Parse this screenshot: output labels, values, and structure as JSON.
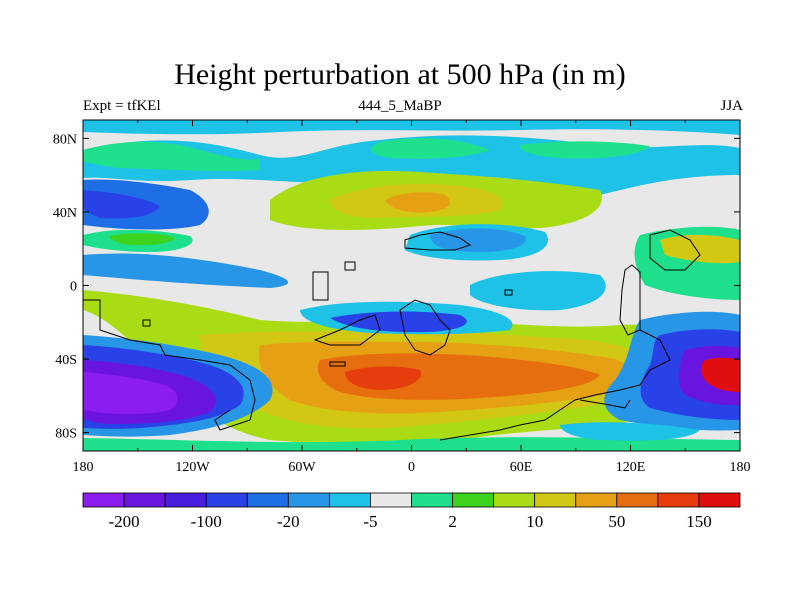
{
  "title": "Height perturbation at 500 hPa (in m)",
  "subtitle_left": "Expt = tfKEl",
  "subtitle_center": "444_5_MaBP",
  "subtitle_right": "JJA",
  "x_ticks": [
    "180",
    "120W",
    "60W",
    "0",
    "60E",
    "120E",
    "180"
  ],
  "y_ticks": [
    "80N",
    "40N",
    "0",
    "40S",
    "80S"
  ],
  "colorbar": {
    "colors": [
      "#8c1cf0",
      "#6a14e0",
      "#4a1ee0",
      "#2842e8",
      "#1e6ee6",
      "#2896e6",
      "#1ec2e6",
      "#e8e8e8",
      "#1ee08c",
      "#3cd21e",
      "#aadc14",
      "#d2c814",
      "#e6a014",
      "#e66e0e",
      "#e63c0e",
      "#e00e0e"
    ],
    "labels": [
      "-200",
      "-100",
      "-20",
      "-5",
      "2",
      "10",
      "50",
      "150"
    ]
  }
}
